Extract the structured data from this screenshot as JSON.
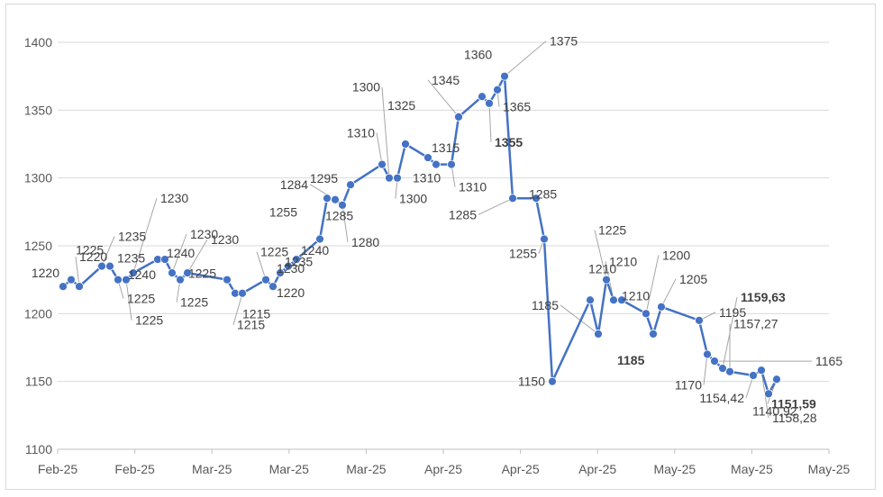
{
  "chart_data": {
    "type": "line",
    "title": "",
    "xlabel": "",
    "ylabel": "",
    "ylim": [
      1100,
      1400
    ],
    "y_ticks": [
      1100,
      1150,
      1200,
      1250,
      1300,
      1350,
      1400
    ],
    "x_tick_labels": [
      "Feb-25",
      "Feb-25",
      "Mar-25",
      "Mar-25",
      "Mar-25",
      "Apr-25",
      "Apr-25",
      "Apr-25",
      "May-25",
      "May-25",
      "May-25"
    ],
    "grid": true,
    "legend": "none",
    "series": [
      {
        "color": "#4472C4",
        "values": [
          1220,
          1225,
          1220,
          1235,
          1235,
          1225,
          1225,
          1230,
          1240,
          1240,
          1230,
          1225,
          1230,
          1225,
          1215,
          1215,
          1225,
          1220,
          1230,
          1235,
          1240,
          1255,
          1285,
          1284,
          1280,
          1295,
          1310,
          1300,
          1300,
          1325,
          1315,
          1310,
          1310,
          1345,
          1360,
          1355,
          1365,
          1375,
          1285,
          1285,
          1255,
          1150,
          1210,
          1185,
          1225,
          1210,
          1210,
          1200,
          1185,
          1205,
          1195,
          1170,
          1165,
          1159.63,
          1157.27,
          1154.42,
          1158.28,
          1140.92,
          1151.59
        ],
        "labels": [
          "1220",
          "1225",
          "1220",
          "1235",
          "1235",
          "1225",
          "1225",
          "1230",
          "1240",
          "1240",
          "1230",
          "1225",
          "1230",
          "1225",
          "1215",
          "1215",
          "1225",
          "1220",
          "1230",
          "1235",
          "1240",
          "1255",
          "1285",
          "1284",
          "1280",
          "1295",
          "1310",
          "1300",
          "1300",
          "1325",
          "1315",
          "1310",
          "1310",
          "1345",
          "1360",
          "1355",
          "1365",
          "1375",
          "1285",
          "1285",
          "1255",
          "1150",
          "1210",
          "1185",
          "1225",
          "1210",
          "1210",
          "1200",
          "1185",
          "1205",
          "1195",
          "1170",
          "1165",
          "1159,63",
          "1157,27",
          "1154,42",
          "1158,28",
          "1140,92",
          "1151,59"
        ]
      }
    ]
  }
}
